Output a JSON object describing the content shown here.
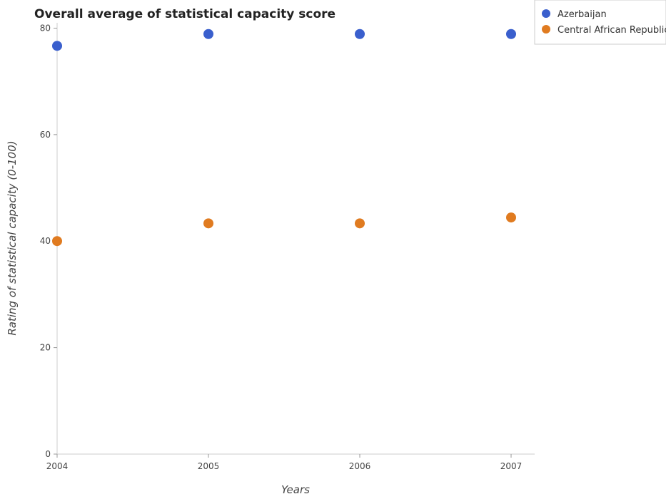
{
  "chart_data": {
    "type": "scatter",
    "title": "Overall average of statistical capacity score",
    "xlabel": "Years",
    "ylabel": "Rating of statistical capacity (0-100)",
    "categories": [
      "2004",
      "2005",
      "2006",
      "2007"
    ],
    "yticks": [
      "0",
      "20",
      "40",
      "60",
      "80"
    ],
    "ylim": [
      0,
      81
    ],
    "grid": false,
    "legend_position": "top-right",
    "series": [
      {
        "name": "Azerbaijan",
        "color": "#3a5fcd",
        "values": [
          76.67,
          78.89,
          78.89,
          78.89
        ]
      },
      {
        "name": "Central African Republic",
        "color": "#e07b20",
        "values": [
          40.0,
          43.33,
          43.33,
          44.44
        ]
      }
    ]
  }
}
